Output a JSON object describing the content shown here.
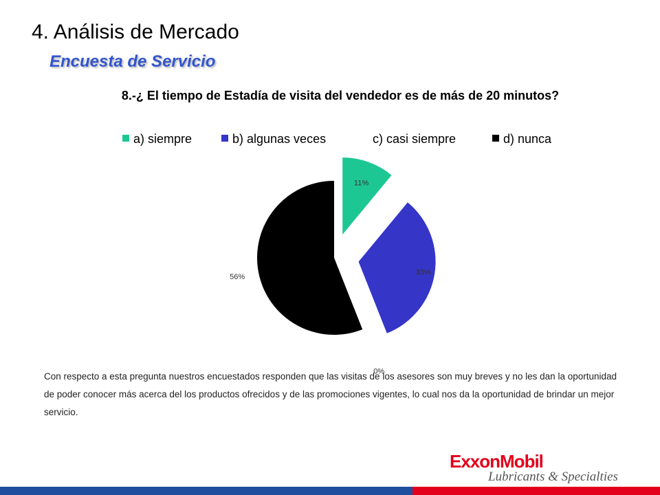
{
  "slide": {
    "title": "4. Análisis de Mercado",
    "subtitle": "Encuesta de Servicio",
    "description": "Con respecto a esta pregunta nuestros encuestados responden que las visitas de los asesores son muy breves  y no les dan la oportunidad de poder conocer más acerca del los productos ofrecidos  y de las promociones vigentes, lo cual nos da la oportunidad de brindar un mejor servicio."
  },
  "logo": {
    "main": "ExxonMobil",
    "sub": "Lubricants & Specialties"
  },
  "colors": {
    "subtitle": "#3355cc",
    "bar_blue": "#1f4e9e",
    "bar_red": "#e3001b"
  },
  "chart_data": {
    "type": "pie",
    "title": "8.-¿ El tiempo de Estadía de visita del vendedor es de más de 20 minutos?",
    "legend_position": "top",
    "exploded": true,
    "categories": [
      "a) siempre",
      "b) algunas veces",
      "c) casi siempre",
      "d) nunca"
    ],
    "values": [
      11,
      33,
      0,
      56
    ],
    "labels": [
      "11%",
      "33%",
      "0%",
      "56%"
    ],
    "colors": [
      "#1dc794",
      "#3535c8",
      "#ffffff",
      "#000000"
    ]
  }
}
